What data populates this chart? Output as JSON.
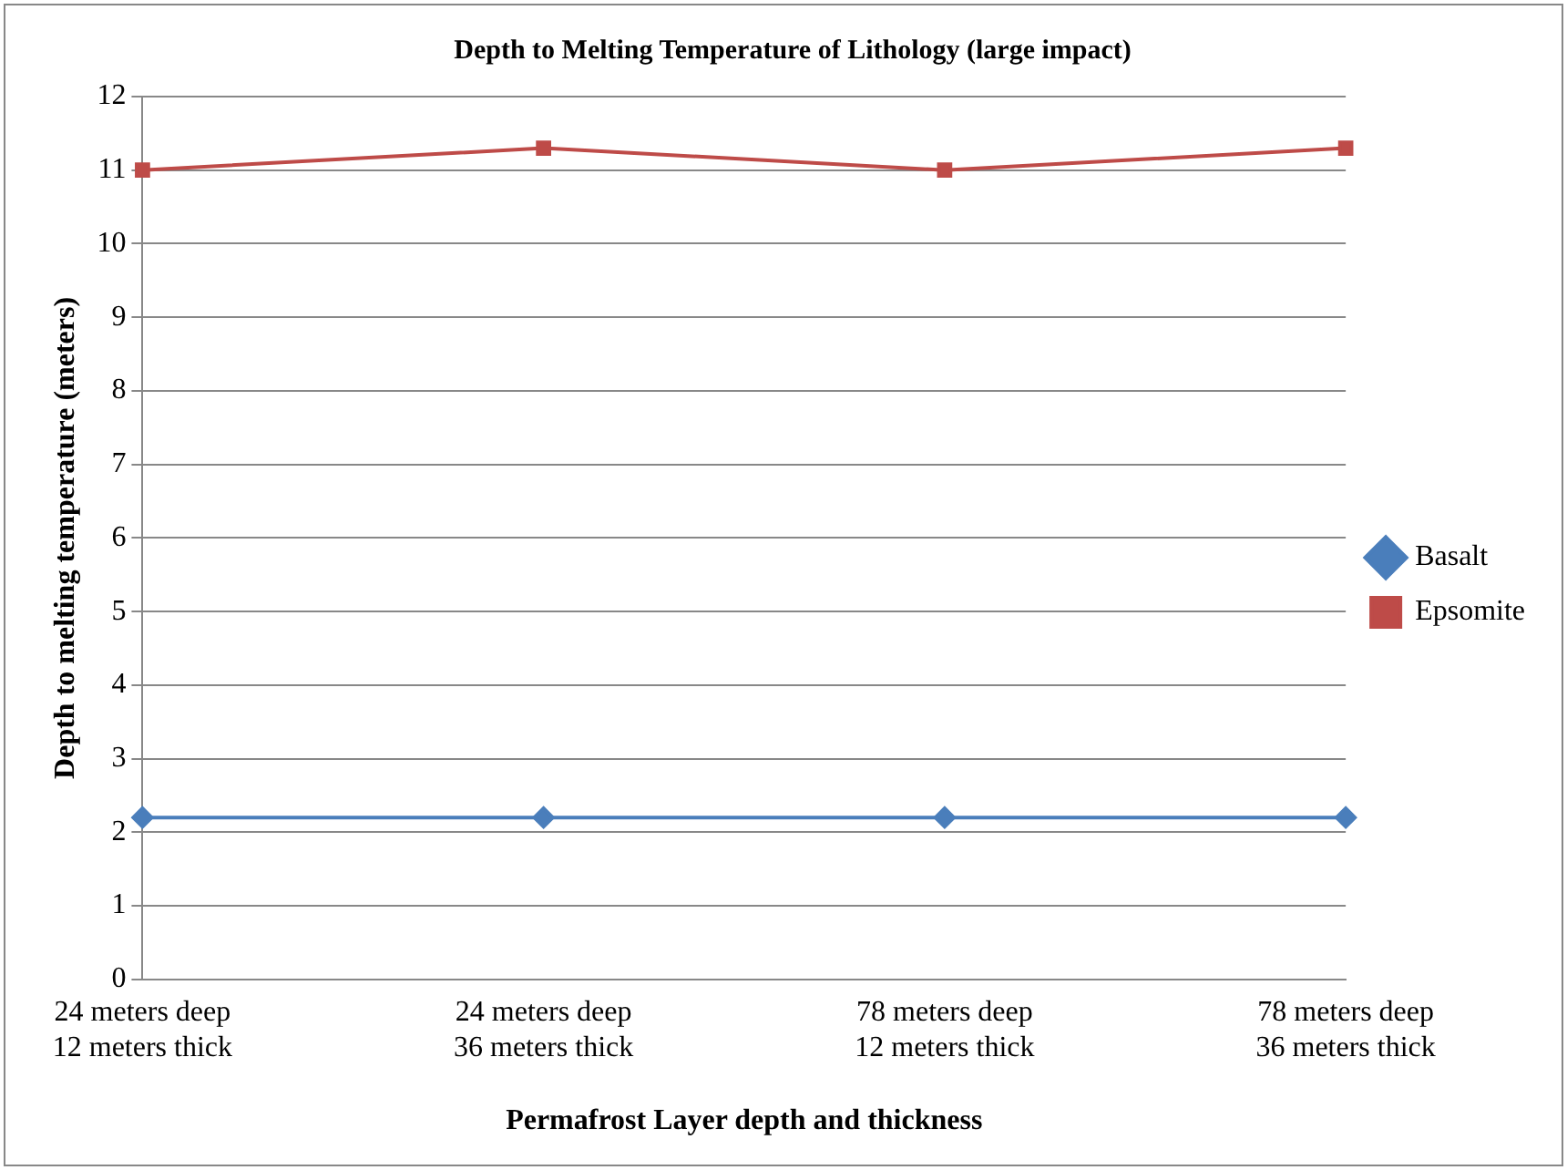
{
  "chart_data": {
    "type": "line",
    "title": "Depth to Melting Temperature of Lithology (large impact)",
    "xlabel": "Permafrost Layer depth and thickness",
    "ylabel": "Depth to melting temperature (meters)",
    "categories": [
      "24 meters deep\n12 meters thick",
      "24 meters deep\n36 meters thick",
      "78 meters deep\n12 meters thick",
      "78 meters deep\n36 meters thick"
    ],
    "series": [
      {
        "name": "Basalt",
        "color": "#4a7ebb",
        "marker": "diamond",
        "values": [
          2.2,
          2.2,
          2.2,
          2.2
        ]
      },
      {
        "name": "Epsomite",
        "color": "#be4b48",
        "marker": "square",
        "values": [
          11.0,
          11.3,
          11.0,
          11.3
        ]
      }
    ],
    "ylim": [
      0,
      12
    ],
    "yticks": [
      0,
      1,
      2,
      3,
      4,
      5,
      6,
      7,
      8,
      9,
      10,
      11,
      12
    ],
    "grid": "y",
    "legend": "right"
  }
}
